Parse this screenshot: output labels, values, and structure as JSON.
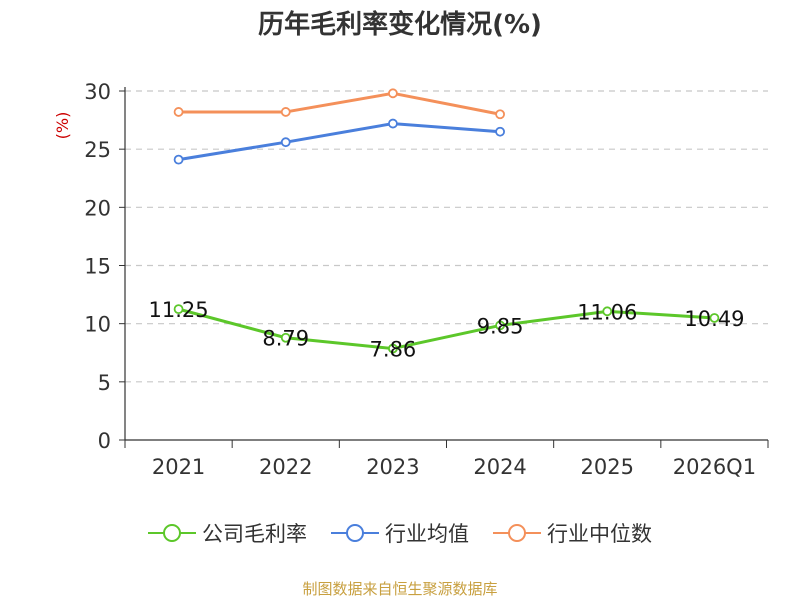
{
  "title": "历年毛利率变化情况(%)",
  "source": "制图数据来自恒生聚源数据库",
  "colors": {
    "company": "#5cc72a",
    "industry_avg": "#4a7fdc",
    "industry_median": "#f4905a",
    "ylabel": "#cc0000",
    "grid": "#c8c8c8",
    "axis": "#333333"
  },
  "legend": [
    {
      "label": "公司毛利率",
      "color": "#5cc72a"
    },
    {
      "label": "行业均值",
      "color": "#4a7fdc"
    },
    {
      "label": "行业中位数",
      "color": "#f4905a"
    }
  ],
  "chart_data": {
    "type": "line",
    "title": "历年毛利率变化情况(%)",
    "ylabel": "(%)",
    "xlabel": "",
    "categories": [
      "2021",
      "2022",
      "2023",
      "2024",
      "2025",
      "2026Q1"
    ],
    "ylim": [
      0,
      30
    ],
    "yticks": [
      0,
      5,
      10,
      15,
      20,
      25,
      30
    ],
    "grid": true,
    "legend_position": "bottom",
    "series": [
      {
        "name": "公司毛利率",
        "values": [
          11.25,
          8.79,
          7.86,
          9.85,
          11.06,
          10.49
        ],
        "labels": [
          "11.25",
          "8.79",
          "7.86",
          "9.85",
          "11.06",
          "10.49"
        ],
        "color": "#5cc72a"
      },
      {
        "name": "行业均值",
        "values": [
          24.1,
          25.6,
          27.2,
          26.5,
          null,
          null
        ],
        "color": "#4a7fdc"
      },
      {
        "name": "行业中位数",
        "values": [
          28.2,
          28.2,
          29.8,
          28.0,
          null,
          null
        ],
        "color": "#f4905a"
      }
    ]
  }
}
